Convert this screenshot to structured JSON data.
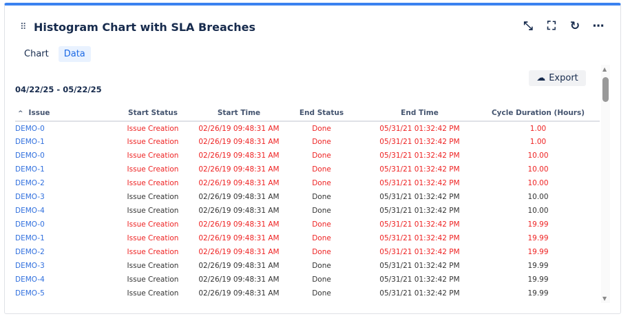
{
  "header": {
    "title": "Histogram Chart with SLA Breaches",
    "icons": [
      "minimize-icon",
      "fullscreen-icon",
      "refresh-icon",
      "more-icon"
    ]
  },
  "tabs": [
    {
      "label": "Chart",
      "active": false
    },
    {
      "label": "Data",
      "active": true
    }
  ],
  "date_range": "04/22/25 - 05/22/25",
  "export_label": "Export",
  "colors": {
    "accent": "#3b82f0",
    "breach": "#ee2222",
    "link": "#2f6fde"
  },
  "table": {
    "columns": [
      "Issue",
      "Start Status",
      "Start Time",
      "End Status",
      "End Time",
      "Cycle Duration (Hours)"
    ],
    "sort": "Issue ascending",
    "rows": [
      {
        "breach": true,
        "cells": [
          "DEMO-0",
          "Issue Creation",
          "02/26/19 09:48:31 AM",
          "Done",
          "05/31/21 01:32:42 PM",
          "1.00"
        ]
      },
      {
        "breach": true,
        "cells": [
          "DEMO-1",
          "Issue Creation",
          "02/26/19 09:48:31 AM",
          "Done",
          "05/31/21 01:32:42 PM",
          "1.00"
        ]
      },
      {
        "breach": true,
        "cells": [
          "DEMO-0",
          "Issue Creation",
          "02/26/19 09:48:31 AM",
          "Done",
          "05/31/21 01:32:42 PM",
          "10.00"
        ]
      },
      {
        "breach": true,
        "cells": [
          "DEMO-1",
          "Issue Creation",
          "02/26/19 09:48:31 AM",
          "Done",
          "05/31/21 01:32:42 PM",
          "10.00"
        ]
      },
      {
        "breach": true,
        "cells": [
          "DEMO-2",
          "Issue Creation",
          "02/26/19 09:48:31 AM",
          "Done",
          "05/31/21 01:32:42 PM",
          "10.00"
        ]
      },
      {
        "breach": false,
        "cells": [
          "DEMO-3",
          "Issue Creation",
          "02/26/19 09:48:31 AM",
          "Done",
          "05/31/21 01:32:42 PM",
          "10.00"
        ]
      },
      {
        "breach": false,
        "cells": [
          "DEMO-4",
          "Issue Creation",
          "02/26/19 09:48:31 AM",
          "Done",
          "05/31/21 01:32:42 PM",
          "10.00"
        ]
      },
      {
        "breach": true,
        "cells": [
          "DEMO-0",
          "Issue Creation",
          "02/26/19 09:48:31 AM",
          "Done",
          "05/31/21 01:32:42 PM",
          "19.99"
        ]
      },
      {
        "breach": true,
        "cells": [
          "DEMO-1",
          "Issue Creation",
          "02/26/19 09:48:31 AM",
          "Done",
          "05/31/21 01:32:42 PM",
          "19.99"
        ]
      },
      {
        "breach": true,
        "cells": [
          "DEMO-2",
          "Issue Creation",
          "02/26/19 09:48:31 AM",
          "Done",
          "05/31/21 01:32:42 PM",
          "19.99"
        ]
      },
      {
        "breach": false,
        "cells": [
          "DEMO-3",
          "Issue Creation",
          "02/26/19 09:48:31 AM",
          "Done",
          "05/31/21 01:32:42 PM",
          "19.99"
        ]
      },
      {
        "breach": false,
        "cells": [
          "DEMO-4",
          "Issue Creation",
          "02/26/19 09:48:31 AM",
          "Done",
          "05/31/21 01:32:42 PM",
          "19.99"
        ]
      },
      {
        "breach": false,
        "cells": [
          "DEMO-5",
          "Issue Creation",
          "02/26/19 09:48:31 AM",
          "Done",
          "05/31/21 01:32:42 PM",
          "19.99"
        ]
      }
    ]
  }
}
